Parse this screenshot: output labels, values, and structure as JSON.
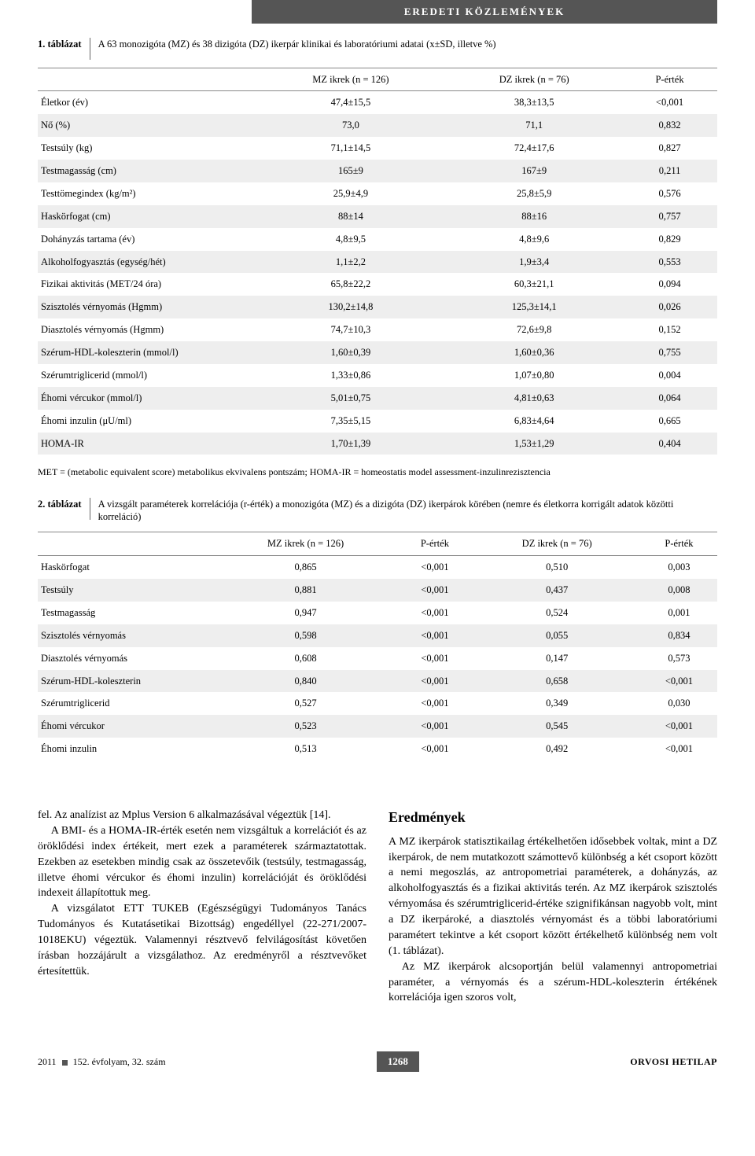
{
  "banner": "EREDETI KÖZLEMÉNYEK",
  "table1": {
    "lead": "1. táblázat",
    "desc": "A 63 monozigóta (MZ) és 38 dizigóta (DZ) ikerpár klinikai és laboratóriumi adatai (x±SD, illetve %)",
    "headers": [
      "",
      "MZ ikrek (n = 126)",
      "DZ ikrek (n = 76)",
      "P-érték"
    ],
    "rows": [
      [
        "Életkor (év)",
        "47,4±15,5",
        "38,3±13,5",
        "<0,001"
      ],
      [
        "Nő (%)",
        "73,0",
        "71,1",
        "0,832"
      ],
      [
        "Testsúly (kg)",
        "71,1±14,5",
        "72,4±17,6",
        "0,827"
      ],
      [
        "Testmagasság (cm)",
        "165±9",
        "167±9",
        "0,211"
      ],
      [
        "Testtömegindex (kg/m²)",
        "25,9±4,9",
        "25,8±5,9",
        "0,576"
      ],
      [
        "Haskörfogat (cm)",
        "88±14",
        "88±16",
        "0,757"
      ],
      [
        "Dohányzás tartama (év)",
        "4,8±9,5",
        "4,8±9,6",
        "0,829"
      ],
      [
        "Alkoholfogyasztás (egység/hét)",
        "1,1±2,2",
        "1,9±3,4",
        "0,553"
      ],
      [
        "Fizikai aktivitás (MET/24 óra)",
        "65,8±22,2",
        "60,3±21,1",
        "0,094"
      ],
      [
        "Szisztolés vérnyomás (Hgmm)",
        "130,2±14,8",
        "125,3±14,1",
        "0,026"
      ],
      [
        "Diasztolés vérnyomás (Hgmm)",
        "74,7±10,3",
        "72,6±9,8",
        "0,152"
      ],
      [
        "Szérum-HDL-koleszterin (mmol/l)",
        "1,60±0,39",
        "1,60±0,36",
        "0,755"
      ],
      [
        "Szérumtriglicerid (mmol/l)",
        "1,33±0,86",
        "1,07±0,80",
        "0,004"
      ],
      [
        "Éhomi vércukor (mmol/l)",
        "5,01±0,75",
        "4,81±0,63",
        "0,064"
      ],
      [
        "Éhomi inzulin (μU/ml)",
        "7,35±5,15",
        "6,83±4,64",
        "0,665"
      ],
      [
        "HOMA-IR",
        "1,70±1,39",
        "1,53±1,29",
        "0,404"
      ]
    ],
    "footnote": "MET = (metabolic equivalent score) metabolikus ekvivalens pontszám; HOMA-IR = homeostatis model assessment-inzulinrezisztencia"
  },
  "table2": {
    "lead": "2. táblázat",
    "desc": "A vizsgált paraméterek korrelációja (r-érték) a monozigóta (MZ) és a dizigóta (DZ) ikerpárok körében (nemre és életkorra korrigált adatok közötti korreláció)",
    "headers": [
      "",
      "MZ ikrek (n = 126)",
      "P-érték",
      "DZ ikrek (n = 76)",
      "P-érték"
    ],
    "rows": [
      [
        "Haskörfogat",
        "0,865",
        "<0,001",
        "0,510",
        "0,003"
      ],
      [
        "Testsúly",
        "0,881",
        "<0,001",
        "0,437",
        "0,008"
      ],
      [
        "Testmagasság",
        "0,947",
        "<0,001",
        "0,524",
        "0,001"
      ],
      [
        "Szisztolés vérnyomás",
        "0,598",
        "<0,001",
        "0,055",
        "0,834"
      ],
      [
        "Diasztolés vérnyomás",
        "0,608",
        "<0,001",
        "0,147",
        "0,573"
      ],
      [
        "Szérum-HDL-koleszterin",
        "0,840",
        "<0,001",
        "0,658",
        "<0,001"
      ],
      [
        "Szérumtriglicerid",
        "0,527",
        "<0,001",
        "0,349",
        "0,030"
      ],
      [
        "Éhomi vércukor",
        "0,523",
        "<0,001",
        "0,545",
        "<0,001"
      ],
      [
        "Éhomi inzulin",
        "0,513",
        "<0,001",
        "0,492",
        "<0,001"
      ]
    ]
  },
  "body": {
    "left": {
      "p1": "fel. Az analízist az Mplus Version 6 alkalmazásával végeztük [14].",
      "p2": "A BMI- és a HOMA-IR-érték esetén nem vizsgáltuk a korrelációt és az öröklődési index értékeit, mert ezek a paraméterek származtatottak. Ezekben az esetekben mindig csak az összetevőik (testsúly, testmagasság, illetve éhomi vércukor és éhomi inzulin) korrelációját és öröklődési indexeit állapítottuk meg.",
      "p3": "A vizsgálatot ETT TUKEB (Egészségügyi Tudományos Tanács Tudományos és Kutatásetikai Bizottság) engedéllyel (22-271/2007-1018EKU) végeztük. Valamennyi résztvevő felvilágosítást követően írásban hozzájárult a vizsgálathoz. Az eredményről a résztvevőket értesítettük."
    },
    "right": {
      "heading": "Eredmények",
      "p1": "A MZ ikerpárok statisztikailag értékelhetően idősebbek voltak, mint a DZ ikerpárok, de nem mutatkozott számottevő különbség a két csoport között a nemi megoszlás, az antropometriai paraméterek, a dohányzás, az alkoholfogyasztás és a fizikai aktivitás terén. Az MZ ikerpárok szisztolés vérnyomása és szérumtriglicerid-értéke szignifikánsan nagyobb volt, mint a DZ ikerpároké, a diasztolés vérnyomást és a többi laboratóriumi paramétert tekintve a két csoport között értékelhető különbség nem volt (1. táblázat).",
      "p2": "Az MZ ikerpárok alcsoportján belül valamennyi antropometriai paraméter, a vérnyomás és a szérum-HDL-koleszterin értékének korrelációja igen szoros volt,"
    }
  },
  "footer": {
    "left_year": "2011",
    "left_issue": "152. évfolyam, 32. szám",
    "page": "1268",
    "right": "ORVOSI HETILAP"
  },
  "style": {
    "banner_bg": "#555555",
    "stripe_bg": "#eeeeee",
    "rule_color": "#888888",
    "text_color": "#000000",
    "page_bg": "#ffffff"
  }
}
